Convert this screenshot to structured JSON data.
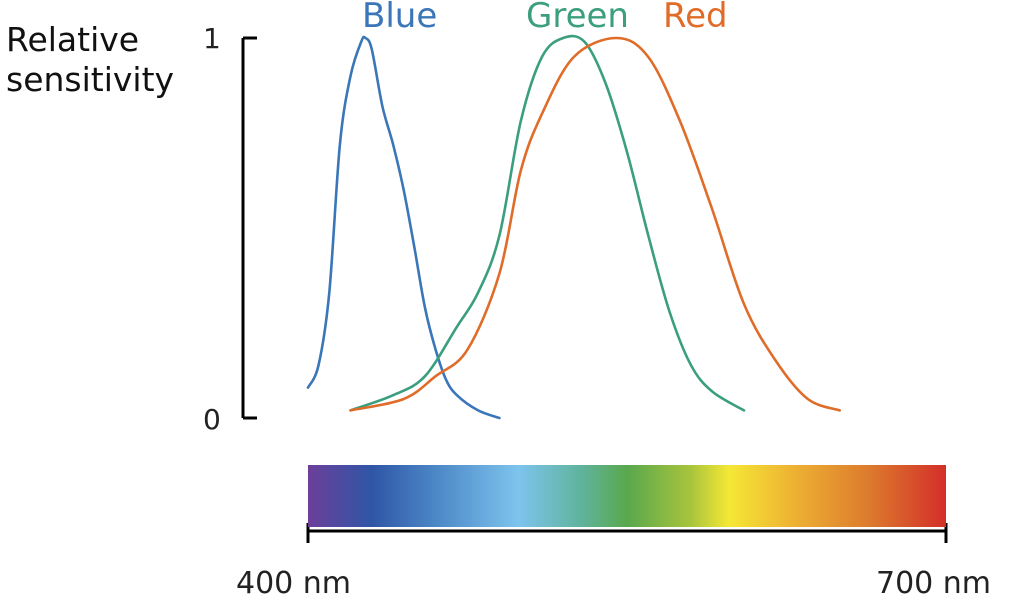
{
  "chart_data": {
    "type": "line",
    "ylabel_lines": [
      "Relative",
      "sensitivity"
    ],
    "y_ticks": [
      "0",
      "1"
    ],
    "ylim": [
      0,
      1
    ],
    "xlim": [
      400,
      700
    ],
    "x_ticks": [
      "400 nm",
      "700 nm"
    ],
    "spectrum_bar": true,
    "grid": false,
    "series": [
      {
        "name": "Blue",
        "color": "#3a76b8",
        "points": [
          [
            400,
            0.08
          ],
          [
            405,
            0.14
          ],
          [
            410,
            0.33
          ],
          [
            415,
            0.72
          ],
          [
            420,
            0.9
          ],
          [
            425,
            0.99
          ],
          [
            427,
            1.0
          ],
          [
            430,
            0.97
          ],
          [
            435,
            0.82
          ],
          [
            440,
            0.72
          ],
          [
            445,
            0.6
          ],
          [
            450,
            0.45
          ],
          [
            455,
            0.29
          ],
          [
            460,
            0.18
          ],
          [
            465,
            0.1
          ],
          [
            470,
            0.06
          ],
          [
            480,
            0.02
          ],
          [
            490,
            0.0
          ]
        ]
      },
      {
        "name": "Green",
        "color": "#3b9e7e",
        "points": [
          [
            420,
            0.02
          ],
          [
            440,
            0.06
          ],
          [
            455,
            0.11
          ],
          [
            470,
            0.24
          ],
          [
            480,
            0.33
          ],
          [
            490,
            0.48
          ],
          [
            500,
            0.78
          ],
          [
            510,
            0.95
          ],
          [
            520,
            1.0
          ],
          [
            530,
            0.99
          ],
          [
            540,
            0.88
          ],
          [
            550,
            0.7
          ],
          [
            560,
            0.48
          ],
          [
            570,
            0.28
          ],
          [
            580,
            0.14
          ],
          [
            590,
            0.07
          ],
          [
            605,
            0.02
          ]
        ]
      },
      {
        "name": "Red",
        "color": "#e06c2a",
        "points": [
          [
            420,
            0.02
          ],
          [
            445,
            0.05
          ],
          [
            460,
            0.11
          ],
          [
            475,
            0.18
          ],
          [
            490,
            0.38
          ],
          [
            500,
            0.65
          ],
          [
            510,
            0.8
          ],
          [
            525,
            0.95
          ],
          [
            545,
            1.0
          ],
          [
            560,
            0.95
          ],
          [
            575,
            0.78
          ],
          [
            590,
            0.55
          ],
          [
            605,
            0.3
          ],
          [
            620,
            0.15
          ],
          [
            635,
            0.05
          ],
          [
            650,
            0.02
          ]
        ]
      }
    ]
  }
}
